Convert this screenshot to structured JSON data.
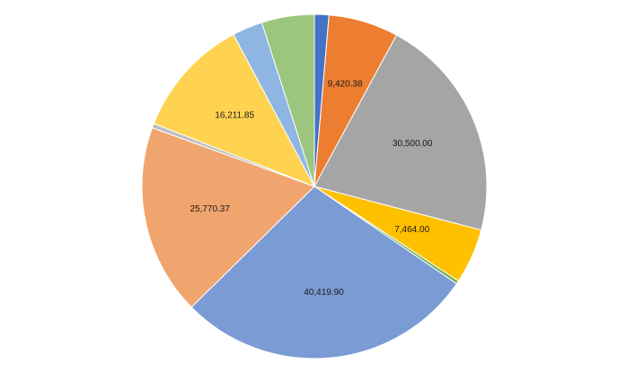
{
  "chart_data": {
    "type": "pie",
    "title": "",
    "series": [
      {
        "slices": [
          {
            "value": 1950.0,
            "label": "",
            "color": "#4472c4"
          },
          {
            "value": 9420.38,
            "label": "9,420.38",
            "color": "#ed7d31"
          },
          {
            "value": 30500.0,
            "label": "30,500.00",
            "color": "#a5a5a5"
          },
          {
            "value": 7464.0,
            "label": "7,464.00",
            "color": "#ffc000"
          },
          {
            "value": 430.0,
            "label": "",
            "color": "#70ad47"
          },
          {
            "value": 40419.9,
            "label": "40,419.90",
            "color": "#7b9bd5"
          },
          {
            "value": 25770.37,
            "label": "25,770.37",
            "color": "#f0a46e"
          },
          {
            "value": 620.0,
            "label": "",
            "color": "#bfbfbf"
          },
          {
            "value": 16211.85,
            "label": "16,211.85",
            "color": "#ffd250"
          },
          {
            "value": 4100.0,
            "label": "",
            "color": "#8fb6e2"
          },
          {
            "value": 7100.0,
            "label": "",
            "color": "#9cc57e"
          }
        ]
      }
    ],
    "legend": "none",
    "start_angle_deg": 0,
    "direction": "clockwise",
    "slice_border_color": "#ffffff"
  }
}
